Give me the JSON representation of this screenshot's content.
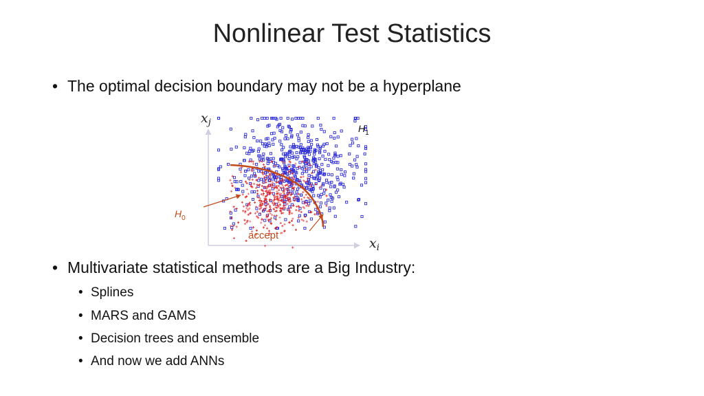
{
  "slide": {
    "title": "Nonlinear Test Statistics",
    "bullet_symbol": "•",
    "bullets": [
      {
        "text": "The optimal decision boundary may not be a hyperplane"
      },
      {
        "text": "Multivariate statistical methods are a Big Industry:",
        "sub": [
          "Splines",
          "MARS and GAMS",
          "Decision trees and ensemble",
          "And now we add ANNs"
        ]
      }
    ]
  },
  "figure": {
    "x_axis_var": "x",
    "x_axis_sub": "i",
    "y_axis_var": "x",
    "y_axis_sub": "j",
    "h1_label": "H",
    "h1_sub": "1",
    "h0_label": "H",
    "h0_sub": "0",
    "accept_label": "accept",
    "colors": {
      "h1_points": "#2b2bd6",
      "h0_points": "#e02020",
      "boundary": "#c04a1a",
      "h0_label": "#c04a1a",
      "accept_label": "#c04a1a",
      "axes": "#cfcfdf"
    }
  },
  "chart_data": {
    "type": "scatter",
    "series": [
      {
        "name": "H1",
        "marker": "open-square",
        "color": "#2b2bd6"
      },
      {
        "name": "H0",
        "marker": "cross",
        "color": "#e02020"
      }
    ]
  }
}
